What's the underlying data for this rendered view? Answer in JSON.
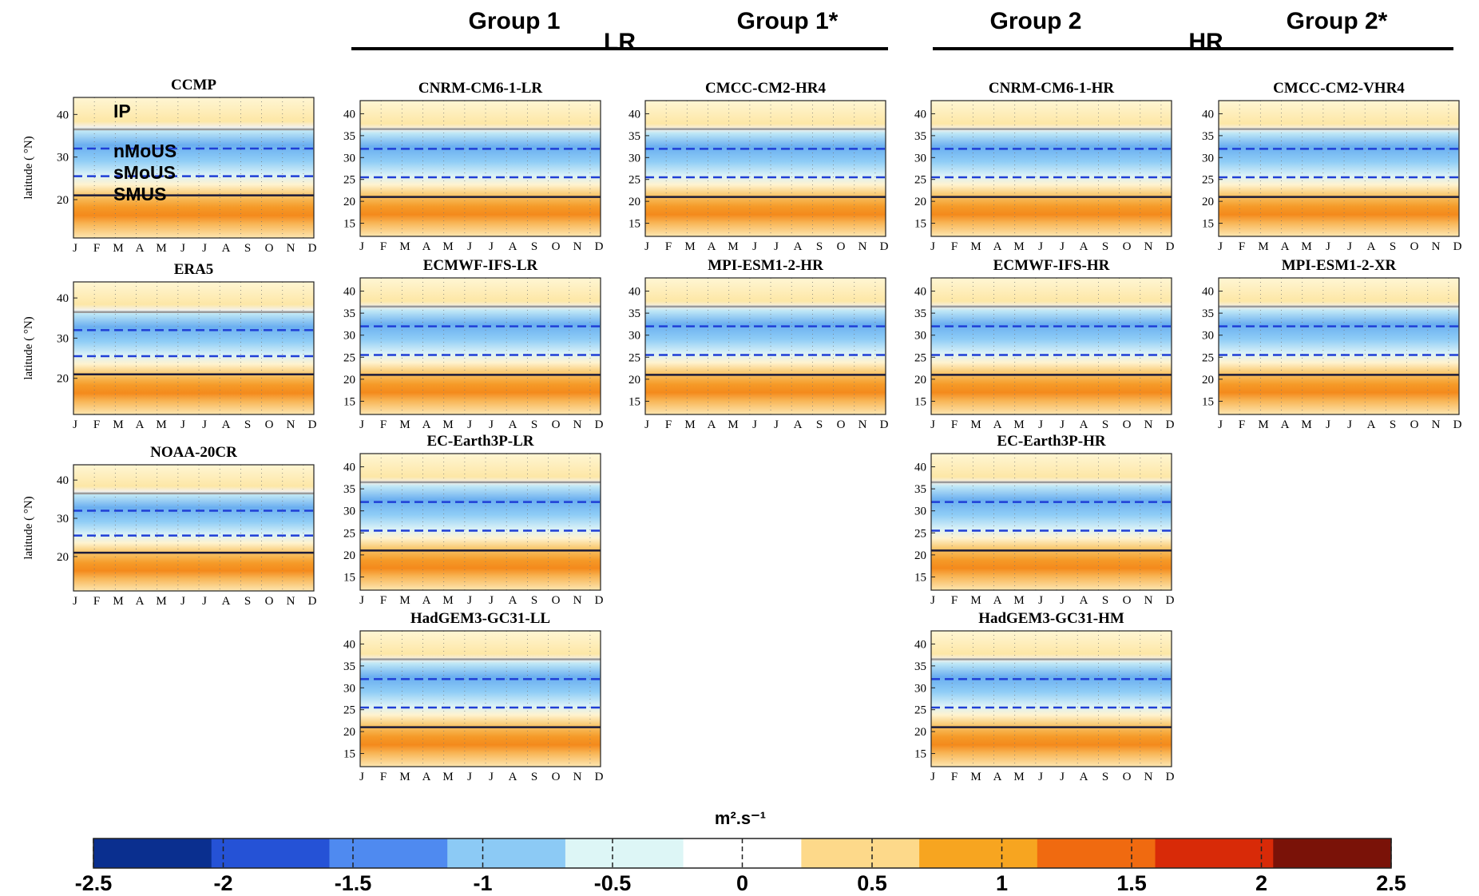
{
  "chart_data": {
    "type": "heatmap",
    "units": "m².s⁻¹",
    "groups": [
      {
        "label": "Group 1"
      },
      {
        "label": "Group 1*"
      },
      {
        "label": "Group 2"
      },
      {
        "label": "Group 2*"
      }
    ],
    "resolution_labels": {
      "low": "LR",
      "high": "HR"
    },
    "months": [
      "J",
      "F",
      "M",
      "A",
      "M",
      "J",
      "J",
      "A",
      "S",
      "O",
      "N",
      "D"
    ],
    "colorbar": {
      "min": -2.5,
      "max": 2.5,
      "ticks": [
        "-2.5",
        "-2",
        "-1.5",
        "-1",
        "-0.5",
        "0",
        "0.5",
        "1",
        "1.5",
        "2",
        "2.5"
      ],
      "colors": [
        "#0a2f8f",
        "#2552d6",
        "#4f8af0",
        "#8ccaf5",
        "#ddf6f6",
        "#ffffff",
        "#fdd98a",
        "#f7a520",
        "#f06a10",
        "#d82a08",
        "#7a1208"
      ]
    },
    "region_boundaries_latN": [
      36.5,
      32,
      25.5,
      21
    ],
    "region_labels": [
      "IP",
      "nMoUS",
      "sMoUS",
      "SMUS"
    ],
    "panels": [
      {
        "title": "CCMP",
        "ylabel": "latitude ( °N)",
        "yticks": [
          "20",
          "30",
          "40"
        ],
        "ylim": [
          11,
          44
        ]
      },
      {
        "title": "ERA5",
        "ylabel": "latitude ( °N)",
        "yticks": [
          "20",
          "30",
          "40"
        ],
        "ylim": [
          11,
          44
        ]
      },
      {
        "title": "NOAA-20CR",
        "ylabel": "latitude ( °N)",
        "yticks": [
          "20",
          "30",
          "40"
        ],
        "ylim": [
          11,
          44
        ]
      },
      {
        "title": "CNRM-CM6-1-LR",
        "yticks": [
          "15",
          "20",
          "25",
          "30",
          "35",
          "40"
        ],
        "ylim": [
          12,
          43
        ]
      },
      {
        "title": "ECMWF-IFS-LR",
        "yticks": [
          "15",
          "20",
          "25",
          "30",
          "35",
          "40"
        ],
        "ylim": [
          12,
          43
        ]
      },
      {
        "title": "EC-Earth3P-LR",
        "yticks": [
          "15",
          "20",
          "25",
          "30",
          "35",
          "40"
        ],
        "ylim": [
          12,
          43
        ]
      },
      {
        "title": "HadGEM3-GC31-LL",
        "yticks": [
          "15",
          "20",
          "25",
          "30",
          "35",
          "40"
        ],
        "ylim": [
          12,
          43
        ]
      },
      {
        "title": "CMCC-CM2-HR4",
        "yticks": [
          "15",
          "20",
          "25",
          "30",
          "35",
          "40"
        ],
        "ylim": [
          12,
          43
        ]
      },
      {
        "title": "MPI-ESM1-2-HR",
        "yticks": [
          "15",
          "20",
          "25",
          "30",
          "35",
          "40"
        ],
        "ylim": [
          12,
          43
        ]
      },
      {
        "title": "CNRM-CM6-1-HR",
        "yticks": [
          "15",
          "20",
          "25",
          "30",
          "35",
          "40"
        ],
        "ylim": [
          12,
          43
        ]
      },
      {
        "title": "ECMWF-IFS-HR",
        "yticks": [
          "15",
          "20",
          "25",
          "30",
          "35",
          "40"
        ],
        "ylim": [
          12,
          43
        ]
      },
      {
        "title": "EC-Earth3P-HR",
        "yticks": [
          "15",
          "20",
          "25",
          "30",
          "35",
          "40"
        ],
        "ylim": [
          12,
          43
        ]
      },
      {
        "title": "HadGEM3-GC31-HM",
        "yticks": [
          "15",
          "20",
          "25",
          "30",
          "35",
          "40"
        ],
        "ylim": [
          12,
          43
        ]
      },
      {
        "title": "CMCC-CM2-VHR4",
        "yticks": [
          "15",
          "20",
          "25",
          "30",
          "35",
          "40"
        ],
        "ylim": [
          12,
          43
        ]
      },
      {
        "title": "MPI-ESM1-2-XR",
        "yticks": [
          "15",
          "20",
          "25",
          "30",
          "35",
          "40"
        ],
        "ylim": [
          12,
          43
        ]
      }
    ]
  }
}
